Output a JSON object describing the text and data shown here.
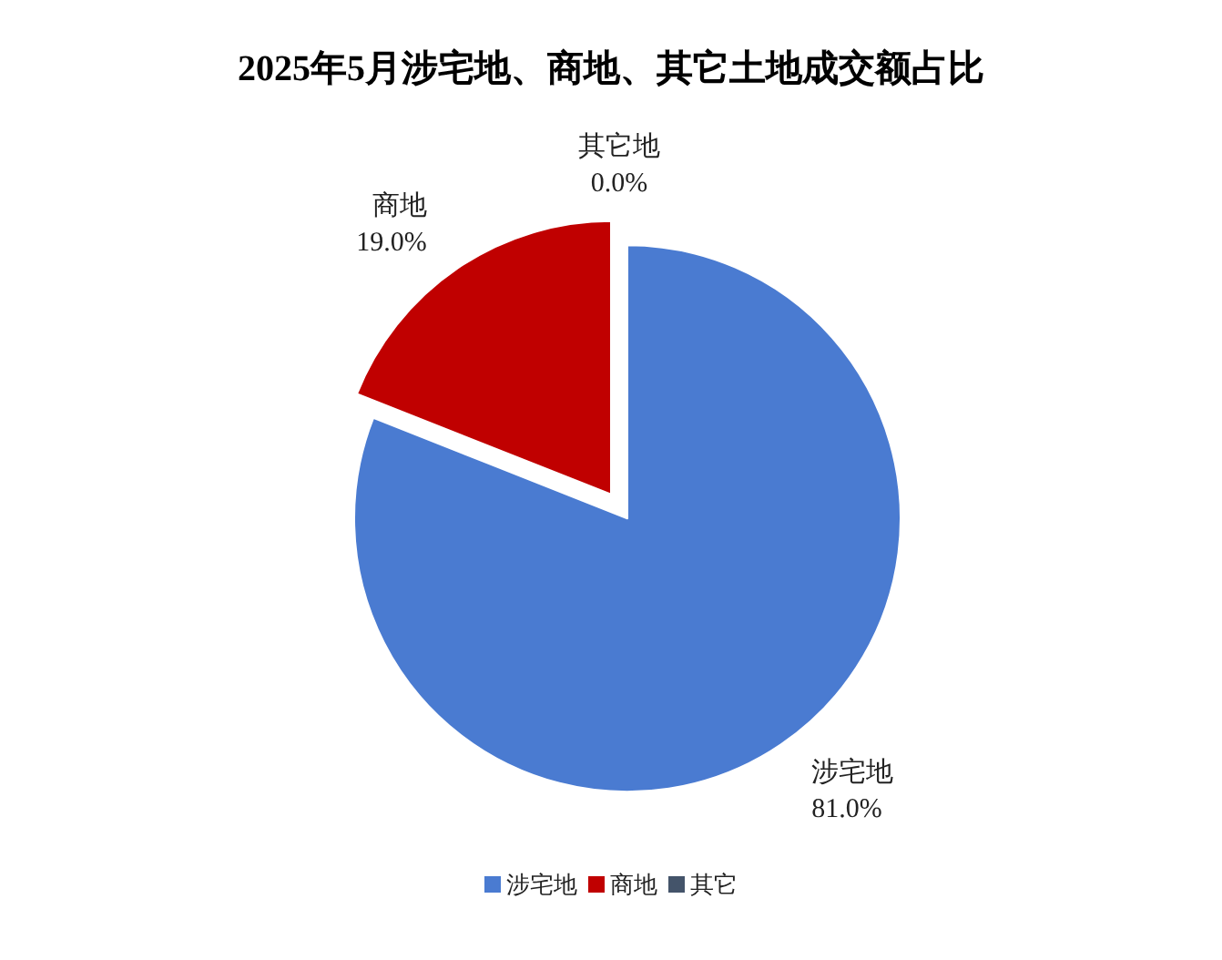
{
  "chart_data": {
    "type": "pie",
    "title": "2025年5月涉宅地、商地、其它土地成交额占比",
    "categories": [
      "涉宅地",
      "商地",
      "其它"
    ],
    "values": [
      81.0,
      19.0,
      0.0
    ],
    "colors": [
      "#4a7bd1",
      "#c00000",
      "#44546a"
    ],
    "value_labels": [
      "涉宅地\n81.0%",
      "商地\n19.0%",
      "其它地\n0.0%"
    ],
    "legend": "bottom"
  }
}
